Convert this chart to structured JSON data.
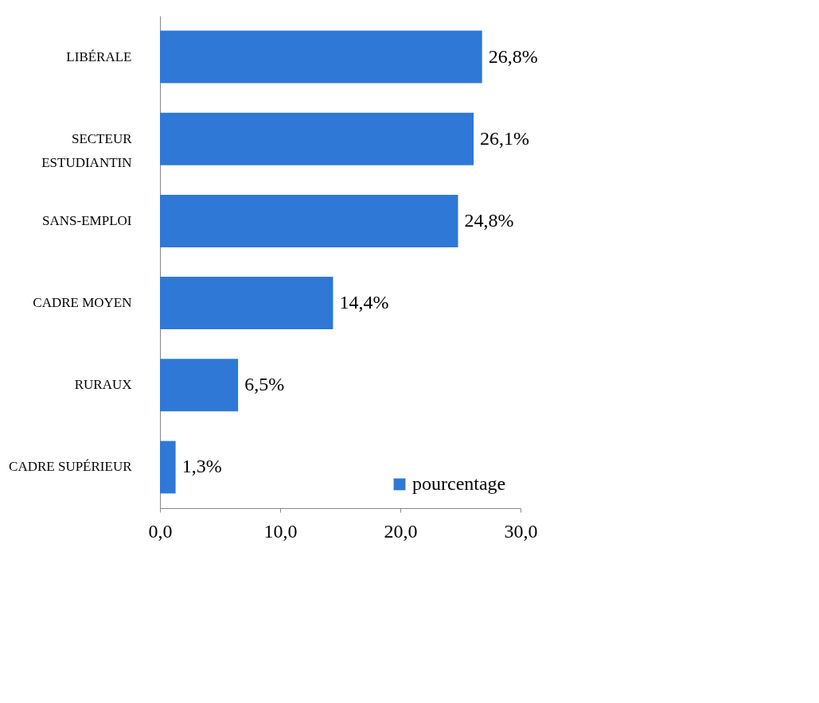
{
  "chart_data": {
    "type": "bar",
    "orientation": "horizontal",
    "categories": [
      "LIBÉRALE",
      "SECTEUR ESTUDIANTIN",
      "SANS-EMPLOI",
      "CADRE MOYEN",
      "RURAUX",
      "CADRE SUPÉRIEUR"
    ],
    "series": [
      {
        "name": "pourcentage",
        "color": "#2f78d6",
        "values": [
          26.8,
          26.1,
          24.8,
          14.4,
          6.5,
          1.3
        ],
        "value_labels": [
          "26,8%",
          "26,1%",
          "24,8%",
          "14,4%",
          "6,5%",
          "1,3%"
        ]
      }
    ],
    "xlim": [
      0,
      30
    ],
    "xticks": [
      {
        "value": 0,
        "label": "0,0"
      },
      {
        "value": 10,
        "label": "10,0"
      },
      {
        "value": 20,
        "label": "20,0"
      },
      {
        "value": 30,
        "label": "30,0"
      }
    ],
    "grid": false,
    "legend": "bottom right"
  }
}
